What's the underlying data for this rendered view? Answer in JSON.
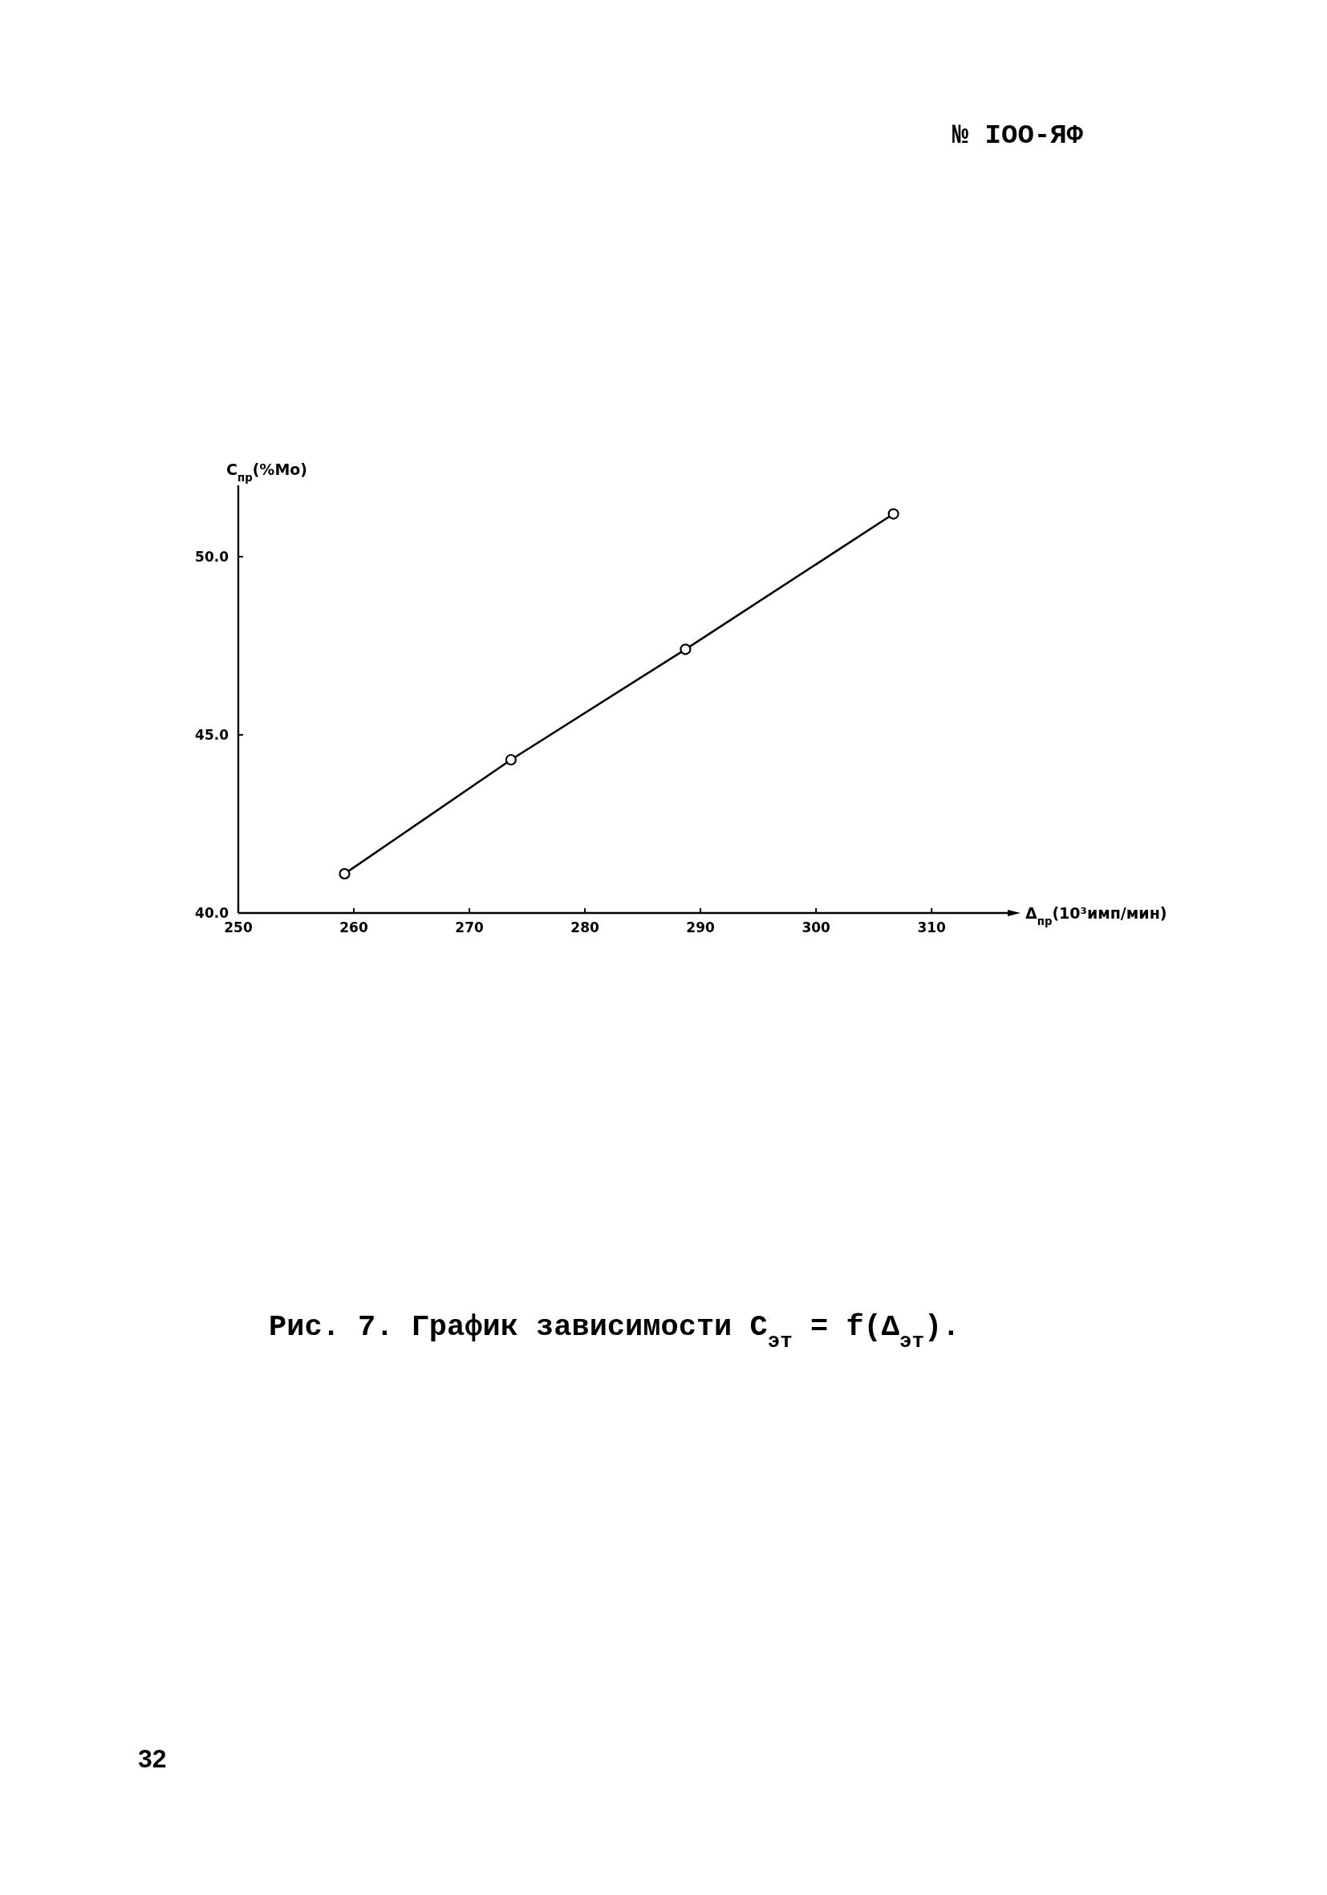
{
  "chart_data": {
    "type": "line",
    "title": "Рис. 7. График зависимости C$_{эт}$ = f(Δ$_{эт}$).",
    "xlabel": "Δ$_{пр}$(10³имп/мин)",
    "ylabel": "C$_{пр}$(%Mo)",
    "annotations": [
      "№ IOO-ЯФ",
      "32"
    ],
    "x": [
      259.2,
      273.6,
      288.7,
      306.7
    ],
    "series": [
      {
        "color": "#000000",
        "values": [
          41.1,
          44.3,
          47.4,
          51.2
        ]
      }
    ],
    "xlim": [
      250,
      317
    ],
    "ylim": [
      40,
      52
    ],
    "xticks": [
      250,
      260,
      270,
      280,
      290,
      300,
      310
    ],
    "yticks": [
      {
        "value": 40,
        "label": "40.0"
      },
      {
        "value": 45,
        "label": "45.0"
      },
      {
        "value": 50,
        "label": "50.0"
      }
    ],
    "marker": "circle",
    "line_style": "solid"
  }
}
